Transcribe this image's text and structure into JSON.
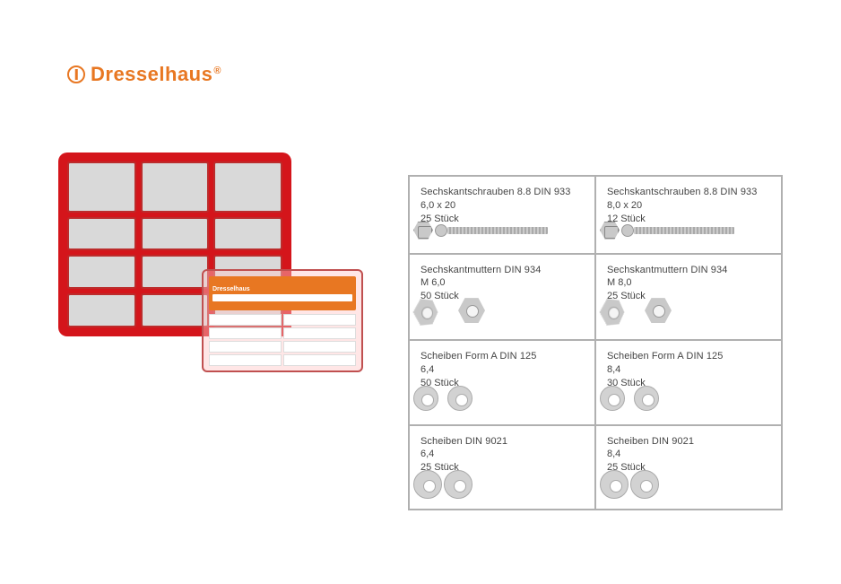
{
  "brand": {
    "name": "Dresselhaus",
    "color": "#e87722",
    "registered_mark": "®"
  },
  "product_image": {
    "main_box_color": "#d4151b",
    "compartment_fill": "#d9d9d9",
    "small_box_label_bg": "#e87722",
    "small_box_brand": "Dresselhaus"
  },
  "table": {
    "border_color": "#b0b0b0",
    "text_color": "#444444",
    "rows": [
      [
        {
          "title": "Sechskantschrauben 8.8 DIN 933",
          "size": "6,0 x 20",
          "qty": "25 Stück",
          "illus": "bolt"
        },
        {
          "title": "Sechskantschrauben 8.8 DIN 933",
          "size": "8,0 x 20",
          "qty": "12 Stück",
          "illus": "bolt"
        }
      ],
      [
        {
          "title": "Sechskantmuttern DIN 934",
          "size": "M 6,0",
          "qty": "50 Stück",
          "illus": "nut"
        },
        {
          "title": "Sechskantmuttern DIN 934",
          "size": "M 8,0",
          "qty": "25 Stück",
          "illus": "nut"
        }
      ],
      [
        {
          "title": "Scheiben Form A DIN 125",
          "size": "6,4",
          "qty": "50 Stück",
          "illus": "washer"
        },
        {
          "title": "Scheiben Form A DIN 125",
          "size": "8,4",
          "qty": "30 Stück",
          "illus": "washer"
        }
      ],
      [
        {
          "title": "Scheiben DIN 9021",
          "size": "6,4",
          "qty": "25 Stück",
          "illus": "washer-big"
        },
        {
          "title": "Scheiben DIN 9021",
          "size": "8,4",
          "qty": "25 Stück",
          "illus": "washer-big"
        }
      ]
    ]
  }
}
